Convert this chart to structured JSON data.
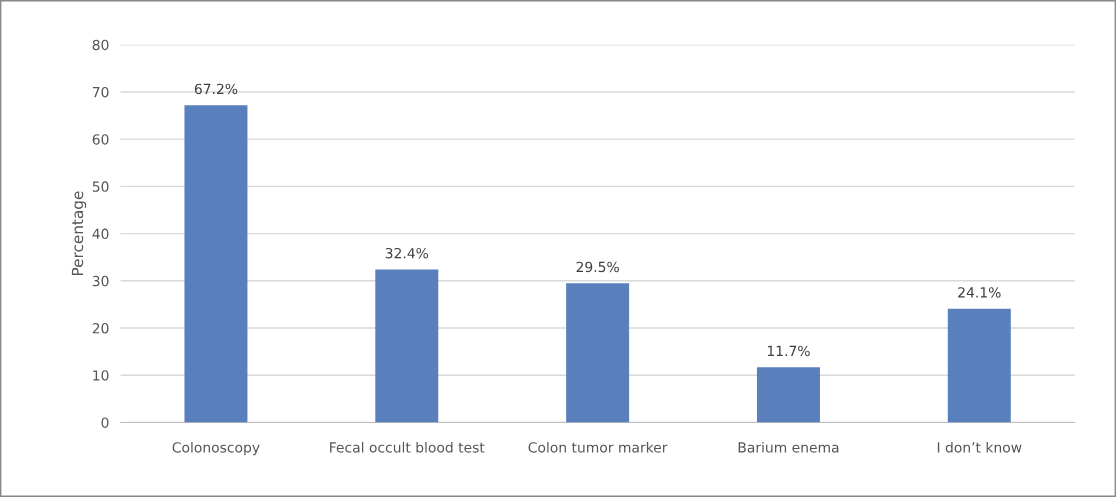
{
  "chart_data": {
    "type": "bar",
    "ylabel": "Percentage",
    "categories": [
      "Colonoscopy",
      "Fecal occult blood test",
      "Colon tumor marker",
      "Barium enema",
      "I don’t know"
    ],
    "values": [
      67.2,
      32.4,
      29.5,
      11.7,
      24.1
    ],
    "value_labels": [
      "67.2%",
      "32.4%",
      "29.5%",
      "11.7%",
      "24.1%"
    ],
    "color": "#5a7fbd",
    "ylim": [
      0,
      80
    ],
    "yticks": [
      0,
      10,
      20,
      30,
      40,
      50,
      60,
      70,
      80
    ],
    "grid": "y"
  }
}
